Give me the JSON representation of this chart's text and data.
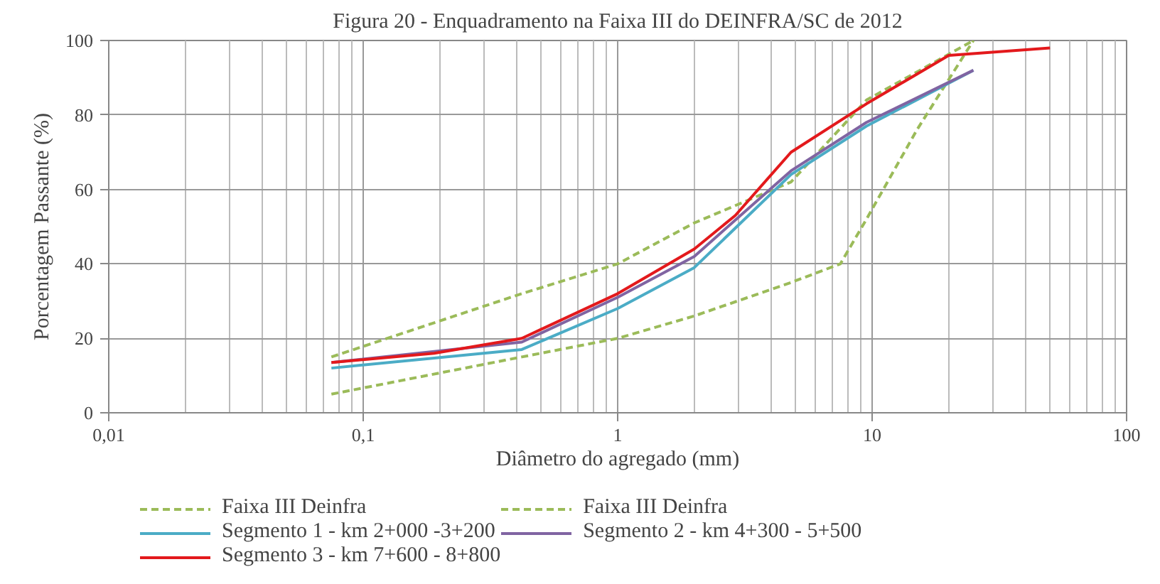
{
  "chart_data": {
    "type": "line",
    "title": "Figura 20 - Enquadramento na Faixa III do DEINFRA/SC de 2012",
    "xlabel": "Diâmetro do agregado (mm)",
    "ylabel": "Porcentagem Passante (%)",
    "log": "x",
    "grid": true,
    "legend": "bottom",
    "marker": "none",
    "xlim": [
      0.01,
      100
    ],
    "ylim": [
      0,
      100
    ],
    "xticks": [
      {
        "value": 0.01,
        "label": "0,01"
      },
      {
        "value": 0.1,
        "label": "0,1"
      },
      1,
      10,
      100
    ],
    "yticks": [
      0,
      20,
      40,
      60,
      80,
      100
    ],
    "series": [
      {
        "name": "Faixa III Deinfra",
        "color": "#9bbb59",
        "line_style": "dashed",
        "x": [
          0.075,
          0.42,
          1,
          2,
          4.8,
          9.5,
          25
        ],
        "values": [
          15,
          32,
          40,
          51,
          62,
          84,
          100
        ]
      },
      {
        "name": "Faixa III Deinfra",
        "color": "#9bbb59",
        "line_style": "dashed",
        "x": [
          0.075,
          0.42,
          1,
          2,
          4.8,
          7.5,
          9.5,
          15,
          25
        ],
        "values": [
          5,
          15,
          20,
          26,
          35,
          40,
          52,
          76,
          100
        ]
      },
      {
        "name": "Segmento 1 - km 2+000 -3+200",
        "color": "#4bacc6",
        "line_style": "solid",
        "x": [
          0.075,
          0.42,
          1,
          2,
          4.8,
          9.5,
          25
        ],
        "values": [
          12,
          17,
          28,
          39,
          64,
          77,
          92
        ]
      },
      {
        "name": "Segmento 2 - km 4+300 - 5+500",
        "color": "#8064a2",
        "line_style": "solid",
        "x": [
          0.075,
          0.42,
          1,
          2,
          4.8,
          9.5,
          25
        ],
        "values": [
          13.5,
          19,
          31,
          42,
          65,
          78,
          92
        ]
      },
      {
        "name": "Segmento 3 - km 7+600 - 8+800",
        "color": "#e3191c",
        "line_style": "solid",
        "x": [
          0.075,
          0.19,
          0.42,
          1,
          2,
          2.9,
          4.8,
          9.5,
          20,
          50
        ],
        "values": [
          13.5,
          16,
          20,
          32,
          44,
          53,
          70,
          83,
          96,
          98
        ]
      }
    ]
  }
}
